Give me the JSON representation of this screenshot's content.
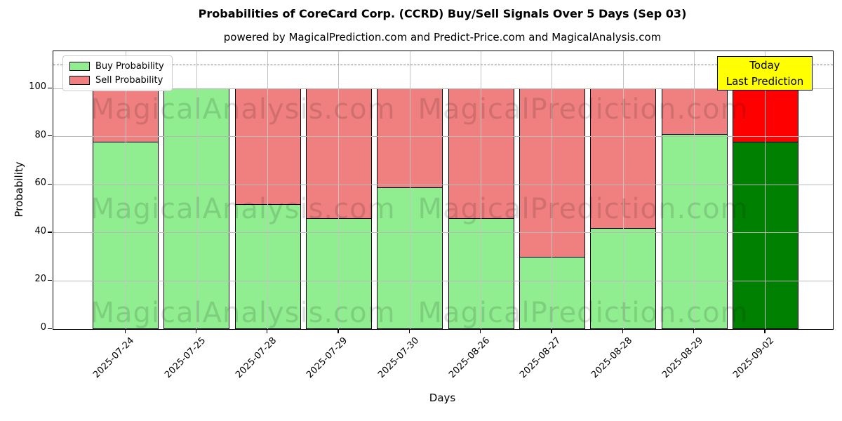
{
  "title": "Probabilities of CoreCard Corp. (CCRD) Buy/Sell Signals Over 5 Days (Sep 03)",
  "subtitle": "powered by MagicalPrediction.com and Predict-Price.com and MagicalAnalysis.com",
  "legend": {
    "items": [
      {
        "label": "Buy Probability",
        "color": "#90EE90"
      },
      {
        "label": "Sell Probability",
        "color": "#F08080"
      }
    ]
  },
  "annotation": {
    "line1": "Today",
    "line2": "Last Prediction",
    "bg_color": "#FFFF00"
  },
  "watermarks": {
    "left": "MagicalAnalysis.com",
    "right": "MagicalPrediction.com"
  },
  "chart_data": {
    "type": "bar",
    "stacked": true,
    "title": "Probabilities of CoreCard Corp. (CCRD) Buy/Sell Signals Over 5 Days (Sep 03)",
    "xlabel": "Days",
    "ylabel": "Probability",
    "categories": [
      "2025-07-24",
      "2025-07-25",
      "2025-07-28",
      "2025-07-29",
      "2025-07-30",
      "2025-08-26",
      "2025-08-27",
      "2025-08-28",
      "2025-08-29",
      "2025-09-02"
    ],
    "series": [
      {
        "name": "Buy Probability",
        "values": [
          78,
          100,
          52,
          46,
          59,
          46,
          30,
          42,
          81,
          78
        ]
      },
      {
        "name": "Sell Probability",
        "values": [
          22,
          0,
          48,
          54,
          41,
          54,
          70,
          58,
          19,
          22
        ]
      }
    ],
    "yticks": [
      0,
      20,
      40,
      60,
      80,
      100
    ],
    "ylim": [
      0,
      115.5
    ],
    "grid": true,
    "legend_position": "upper left",
    "dashed_threshold_y": 110,
    "today_index": 9,
    "colors": {
      "buy": "#90EE90",
      "sell": "#F08080",
      "buy_today": "#008000",
      "sell_today": "#FF0000",
      "bar_edge": "#000000",
      "grid": "#b9b9b9"
    }
  }
}
